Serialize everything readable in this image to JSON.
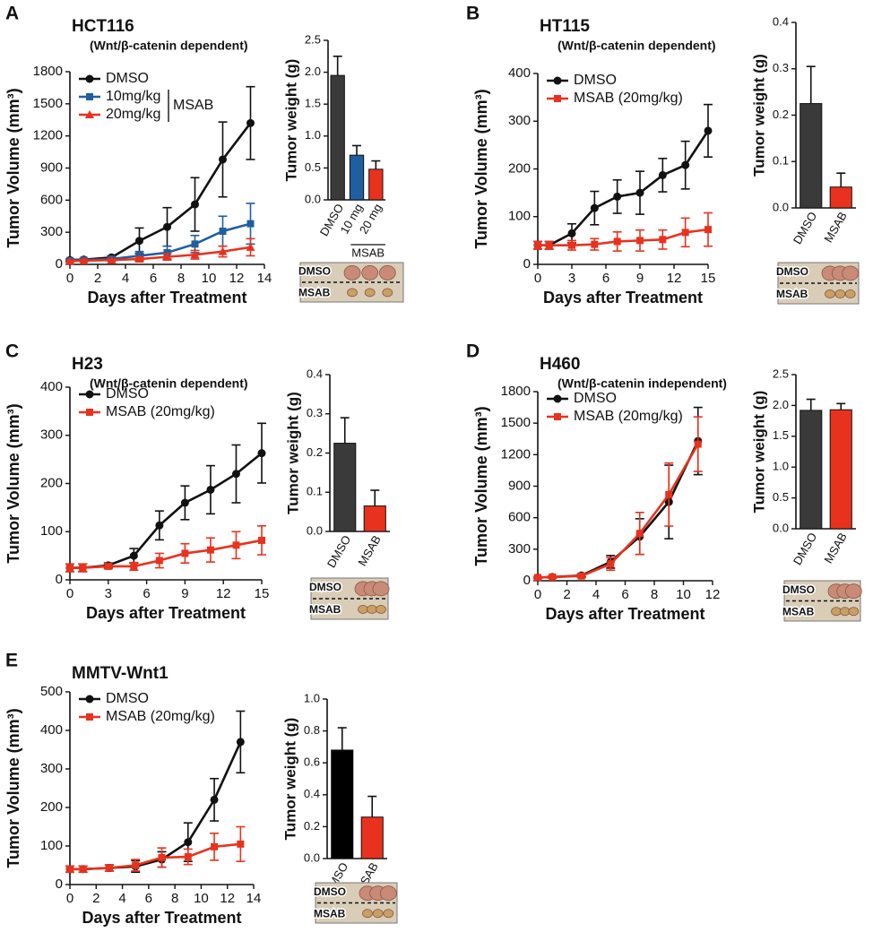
{
  "chart_data": [
    {
      "type": "line",
      "panel": "A",
      "title": "HCT116",
      "subtitle": "(Wnt/β-catenin dependent)",
      "x_label": "Days after Treatment",
      "y_label": "Tumor Volume (mm³)",
      "x": [
        0,
        1,
        3,
        5,
        7,
        9,
        11,
        13
      ],
      "xlim": [
        0,
        14
      ],
      "xticks": [
        0,
        2,
        4,
        6,
        8,
        10,
        12,
        14
      ],
      "ylim": [
        0,
        1800
      ],
      "yticks": [
        0,
        300,
        600,
        900,
        1200,
        1500,
        1800
      ],
      "legend": "upper left",
      "legend_annotation": "MSAB",
      "series": [
        {
          "name": "DMSO",
          "color": "#111111",
          "marker": "circle",
          "values": [
            40,
            45,
            65,
            220,
            350,
            560,
            980,
            1320
          ],
          "errors": [
            10,
            10,
            15,
            120,
            180,
            250,
            350,
            340
          ]
        },
        {
          "name": "10mg/kg",
          "color": "#1f5fa0",
          "marker": "square",
          "values": [
            35,
            40,
            50,
            80,
            110,
            190,
            310,
            380
          ],
          "errors": [
            10,
            10,
            15,
            40,
            60,
            80,
            140,
            190
          ]
        },
        {
          "name": "20mg/kg",
          "color": "#e8321e",
          "marker": "triangle",
          "values": [
            30,
            35,
            40,
            50,
            70,
            90,
            120,
            160
          ],
          "errors": [
            10,
            10,
            10,
            20,
            30,
            40,
            50,
            80
          ]
        }
      ]
    },
    {
      "type": "bar",
      "y_label": "Tumor weight (g)",
      "categories": [
        "DMSO",
        "10 mg",
        "20 mg"
      ],
      "values": [
        1.95,
        0.7,
        0.48
      ],
      "errors": [
        0.3,
        0.15,
        0.13
      ],
      "colors": [
        "#3a3a3a",
        "#1f5fa0",
        "#e8321e"
      ],
      "ylim": [
        0,
        2.5
      ],
      "yticks": [
        {
          "value": 0,
          "label": "0.0"
        },
        0.5,
        {
          "value": 1,
          "label": "1.0"
        },
        1.5,
        {
          "value": 2,
          "label": "2.0"
        },
        2.5
      ],
      "annotation": "MSAB",
      "photo_labels": [
        "DMSO",
        "MSAB"
      ]
    },
    {
      "type": "line",
      "panel": "B",
      "title": "HT115",
      "subtitle": "(Wnt/β-catenin dependent)",
      "x_label": "Days after Treatment",
      "y_label": "Tumor Volume (mm³)",
      "x": [
        0,
        1,
        3,
        5,
        7,
        9,
        11,
        13,
        15
      ],
      "xlim": [
        0,
        15
      ],
      "xticks": [
        0,
        3,
        6,
        9,
        12,
        15
      ],
      "ylim": [
        0,
        400
      ],
      "yticks": [
        0,
        100,
        200,
        300,
        400
      ],
      "legend": "upper left",
      "series": [
        {
          "name": "DMSO",
          "color": "#111111",
          "marker": "circle",
          "values": [
            40,
            40,
            65,
            118,
            142,
            150,
            187,
            208,
            280
          ],
          "errors": [
            8,
            8,
            20,
            35,
            35,
            45,
            35,
            50,
            55
          ]
        },
        {
          "name": "MSAB (20mg/kg)",
          "color": "#e8321e",
          "marker": "square",
          "values": [
            40,
            40,
            40,
            42,
            48,
            50,
            52,
            67,
            73
          ],
          "errors": [
            8,
            8,
            10,
            12,
            20,
            22,
            20,
            30,
            35
          ]
        }
      ]
    },
    {
      "type": "bar",
      "y_label": "Tumor weight (g)",
      "categories": [
        "DMSO",
        "MSAB"
      ],
      "values": [
        0.225,
        0.045
      ],
      "errors": [
        0.08,
        0.03
      ],
      "colors": [
        "#3a3a3a",
        "#e8321e"
      ],
      "ylim": [
        0,
        0.4
      ],
      "yticks": [
        {
          "value": 0,
          "label": "0.0"
        },
        0.1,
        0.2,
        0.3,
        0.4
      ],
      "photo_labels": [
        "DMSO",
        "MSAB"
      ]
    },
    {
      "type": "line",
      "panel": "C",
      "title": "H23",
      "subtitle": "(Wnt/β-catenin dependent)",
      "x_label": "Days after Treatment",
      "y_label": "Tumor Volume (mm³)",
      "x": [
        0,
        1,
        3,
        5,
        7,
        9,
        11,
        13,
        15
      ],
      "xlim": [
        0,
        15
      ],
      "xticks": [
        0,
        3,
        6,
        9,
        12,
        15
      ],
      "ylim": [
        0,
        400
      ],
      "yticks": [
        0,
        100,
        200,
        300,
        400
      ],
      "legend": "upper left",
      "series": [
        {
          "name": "DMSO",
          "color": "#111111",
          "marker": "circle",
          "values": [
            25,
            25,
            30,
            50,
            113,
            160,
            187,
            220,
            263
          ],
          "errors": [
            8,
            8,
            5,
            15,
            30,
            35,
            50,
            60,
            62
          ]
        },
        {
          "name": "MSAB (20mg/kg)",
          "color": "#e8321e",
          "marker": "square",
          "values": [
            25,
            25,
            28,
            28,
            40,
            55,
            62,
            72,
            82
          ],
          "errors": [
            8,
            8,
            5,
            8,
            15,
            20,
            25,
            28,
            30
          ]
        }
      ]
    },
    {
      "type": "bar",
      "y_label": "Tumor weight (g)",
      "categories": [
        "DMSO",
        "MSAB"
      ],
      "values": [
        0.225,
        0.065
      ],
      "errors": [
        0.065,
        0.04
      ],
      "colors": [
        "#3a3a3a",
        "#e8321e"
      ],
      "ylim": [
        0,
        0.4
      ],
      "yticks": [
        {
          "value": 0,
          "label": "0.0"
        },
        0.1,
        0.2,
        0.3,
        0.4
      ],
      "photo_labels": [
        "DMSO",
        "MSAB"
      ]
    },
    {
      "type": "line",
      "panel": "D",
      "title": "H460",
      "subtitle": "(Wnt/β-catenin independent)",
      "x_label": "Days after Treatment",
      "y_label": "Tumor Volume (mm³)",
      "x": [
        0,
        1,
        3,
        5,
        7,
        9,
        11
      ],
      "xlim": [
        0,
        12
      ],
      "xticks": [
        0,
        2,
        4,
        6,
        8,
        10,
        12
      ],
      "ylim": [
        0,
        1800
      ],
      "yticks": [
        0,
        300,
        600,
        900,
        1200,
        1500,
        1800
      ],
      "legend": "upper left",
      "series": [
        {
          "name": "DMSO",
          "color": "#111111",
          "marker": "circle",
          "values": [
            30,
            35,
            50,
            180,
            420,
            750,
            1330
          ],
          "errors": [
            10,
            10,
            15,
            60,
            170,
            350,
            320
          ]
        },
        {
          "name": "MSAB (20mg/kg)",
          "color": "#e8321e",
          "marker": "square",
          "values": [
            30,
            35,
            45,
            160,
            450,
            820,
            1300
          ],
          "errors": [
            10,
            10,
            15,
            60,
            200,
            300,
            260
          ]
        }
      ]
    },
    {
      "type": "bar",
      "y_label": "Tumor weight (g)",
      "categories": [
        "DMSO",
        "MSAB"
      ],
      "values": [
        1.92,
        1.93
      ],
      "errors": [
        0.18,
        0.1
      ],
      "colors": [
        "#3a3a3a",
        "#e8321e"
      ],
      "ylim": [
        0,
        2.5
      ],
      "yticks": [
        {
          "value": 0,
          "label": "0.0"
        },
        0.5,
        {
          "value": 1,
          "label": "1.0"
        },
        1.5,
        {
          "value": 2,
          "label": "2.0"
        },
        2.5
      ],
      "photo_labels": [
        "DMSO",
        "MSAB"
      ]
    },
    {
      "type": "line",
      "panel": "E",
      "title": "MMTV-Wnt1",
      "x_label": "Days after Treatment",
      "y_label": "Tumor Volume (mm³)",
      "x": [
        0,
        1,
        3,
        5,
        7,
        9,
        11,
        13
      ],
      "xlim": [
        0,
        14
      ],
      "xticks": [
        0,
        2,
        4,
        6,
        8,
        10,
        12,
        14
      ],
      "ylim": [
        0,
        500
      ],
      "yticks": [
        0,
        100,
        200,
        300,
        400,
        500
      ],
      "legend": "upper left",
      "series": [
        {
          "name": "DMSO",
          "color": "#111111",
          "marker": "circle",
          "values": [
            40,
            40,
            43,
            47,
            65,
            110,
            220,
            370
          ],
          "errors": [
            8,
            8,
            8,
            15,
            20,
            50,
            55,
            80
          ]
        },
        {
          "name": "MSAB (20mg/kg)",
          "color": "#e8321e",
          "marker": "square",
          "values": [
            40,
            40,
            43,
            50,
            70,
            72,
            98,
            105
          ],
          "errors": [
            8,
            8,
            8,
            15,
            25,
            20,
            35,
            45
          ]
        }
      ]
    },
    {
      "type": "bar",
      "y_label": "Tumor weight (g)",
      "categories": [
        "DMSO",
        "MSAB"
      ],
      "values": [
        0.68,
        0.26
      ],
      "errors": [
        0.14,
        0.13
      ],
      "colors": [
        "#000000",
        "#e8321e"
      ],
      "ylim": [
        0,
        1
      ],
      "yticks": [
        {
          "value": 0,
          "label": "0.0"
        },
        0.2,
        0.4,
        0.6,
        0.8,
        {
          "value": 1,
          "label": "1.0"
        }
      ],
      "photo_labels": [
        "DMSO",
        "MSAB"
      ]
    }
  ]
}
